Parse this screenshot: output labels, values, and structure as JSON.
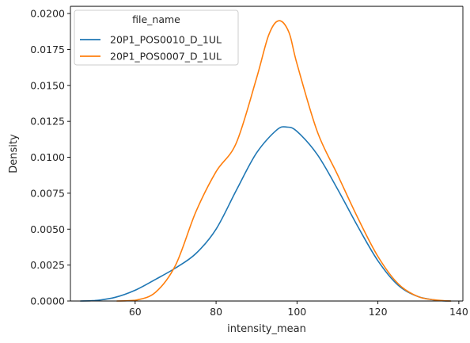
{
  "chart_data": {
    "type": "line",
    "title": "",
    "xlabel": "intensity_mean",
    "ylabel": "Density",
    "xlim": [
      44,
      141
    ],
    "ylim": [
      0,
      0.0205
    ],
    "x_ticks": [
      60,
      80,
      100,
      120,
      140
    ],
    "x_tick_labels": [
      "60",
      "80",
      "100",
      "120",
      "140"
    ],
    "y_ticks": [
      0,
      0.0025,
      0.005,
      0.0075,
      0.01,
      0.0125,
      0.015,
      0.0175,
      0.02
    ],
    "y_tick_labels": [
      "0.0000",
      "0.0025",
      "0.0050",
      "0.0075",
      "0.0100",
      "0.0125",
      "0.0150",
      "0.0175",
      "0.0200"
    ],
    "grid": false,
    "legend": {
      "title": "file_name",
      "placement": "top-left"
    },
    "series": [
      {
        "name": "20P1_POS0010_D_1UL",
        "color": "#1f77b4",
        "x": [
          46.5,
          50,
          55,
          60,
          65,
          70,
          75,
          80,
          85,
          90,
          95,
          97.5,
          100,
          105,
          110,
          115,
          120,
          125,
          130,
          135,
          138
        ],
        "y": [
          0.0,
          3e-05,
          0.00025,
          0.00075,
          0.0015,
          0.0023,
          0.0033,
          0.005,
          0.0077,
          0.0103,
          0.0119,
          0.0121,
          0.0118,
          0.0102,
          0.0078,
          0.0052,
          0.0028,
          0.0011,
          0.0003,
          4e-05,
          0.0
        ]
      },
      {
        "name": "20P1_POS0007_D_1UL",
        "color": "#ff7f0e",
        "x": [
          55.5,
          60,
          65,
          70,
          75,
          80,
          85,
          90,
          93,
          95.5,
          98,
          100,
          105,
          110,
          115,
          120,
          125,
          130,
          135,
          138
        ],
        "y": [
          0.0,
          5e-05,
          0.0006,
          0.0025,
          0.0062,
          0.009,
          0.011,
          0.0155,
          0.0185,
          0.0195,
          0.0187,
          0.0165,
          0.0118,
          0.0088,
          0.0058,
          0.0031,
          0.0012,
          0.0003,
          5e-05,
          0.0
        ]
      }
    ]
  }
}
